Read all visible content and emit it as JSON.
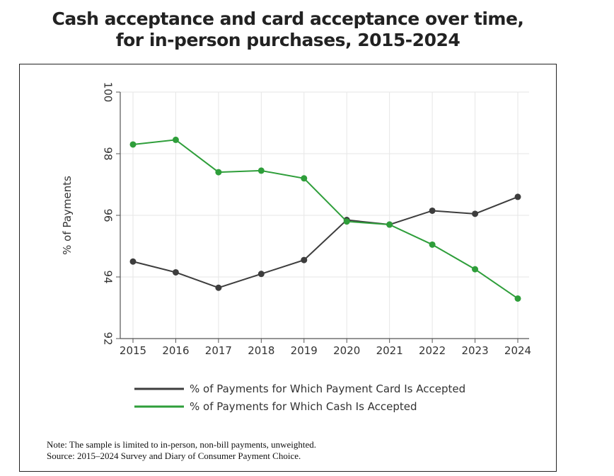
{
  "title_line1": "Cash acceptance and card acceptance over time,",
  "title_line2": "for in-person purchases, 2015-2024",
  "note": "Note: The sample is limited to in-person, non-bill payments, unweighted.",
  "source": "Source: 2015–2024 Survey and Diary of Consumer Payment Choice.",
  "colors": {
    "card": "#3d3d3d",
    "cash": "#2e9e3a",
    "grid": "#e6e6e6",
    "axis": "#555555"
  },
  "chart_data": {
    "type": "line",
    "title": "Cash acceptance and card acceptance over time, for in-person purchases, 2015-2024",
    "xlabel": "",
    "ylabel": "% of Payments",
    "x": [
      "2015",
      "2016",
      "2017",
      "2018",
      "2019",
      "2020",
      "2021",
      "2022",
      "2023",
      "2024"
    ],
    "yticks": [
      "92",
      "94",
      "96",
      "98",
      "100"
    ],
    "ylim": [
      92,
      100
    ],
    "grid": true,
    "legend_position": "bottom",
    "series": [
      {
        "name": "% of Payments for Which Payment Card Is Accepted",
        "color_key": "card",
        "values": [
          94.5,
          94.15,
          93.65,
          94.1,
          94.55,
          95.85,
          95.7,
          96.15,
          96.05,
          96.6
        ]
      },
      {
        "name": "% of Payments for Which Cash Is Accepted",
        "color_key": "cash",
        "values": [
          98.3,
          98.45,
          97.4,
          97.45,
          97.2,
          95.8,
          95.7,
          95.05,
          94.25,
          93.3
        ]
      }
    ]
  }
}
